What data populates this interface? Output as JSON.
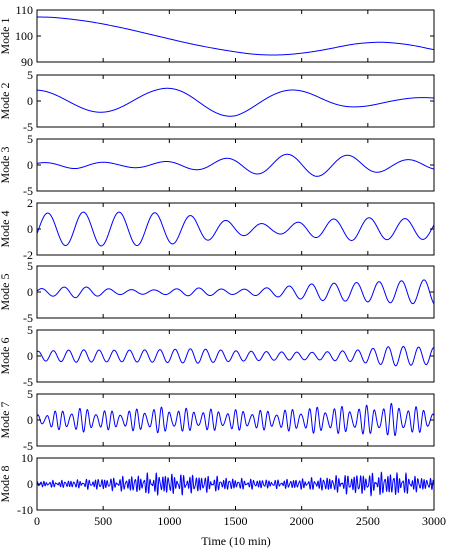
{
  "figure": {
    "xlabel": "Time (10 min)",
    "xticks": [
      0,
      500,
      1000,
      1500,
      2000,
      2500,
      3000
    ],
    "line_color": "#0000ff"
  },
  "chart_data": [
    {
      "type": "line",
      "ylabel": "Mode 1",
      "xlim": [
        0,
        3000
      ],
      "ylim": [
        90,
        110
      ],
      "yticks": [
        90,
        100,
        110
      ],
      "x": [
        0,
        100,
        200,
        300,
        400,
        500,
        600,
        700,
        800,
        900,
        1000,
        1100,
        1200,
        1300,
        1400,
        1500,
        1600,
        1700,
        1800,
        1900,
        2000,
        2100,
        2200,
        2300,
        2400,
        2500,
        2600,
        2700,
        2800,
        2900,
        3000
      ],
      "values": [
        107.3,
        107.2,
        106.8,
        106.2,
        105.5,
        104.6,
        103.6,
        102.5,
        101.3,
        100.1,
        98.9,
        97.7,
        96.6,
        95.6,
        94.7,
        93.9,
        93.2,
        92.8,
        92.7,
        92.9,
        93.4,
        94.1,
        95.0,
        96.0,
        96.9,
        97.4,
        97.6,
        97.3,
        96.7,
        95.8,
        94.8
      ]
    },
    {
      "type": "line",
      "ylabel": "Mode 2",
      "xlim": [
        0,
        3000
      ],
      "ylim": [
        -5,
        5
      ],
      "yticks": [
        -5,
        0,
        5
      ],
      "components": [
        {
          "amp": 2.1,
          "period": 980,
          "phase": 1.65
        }
      ],
      "envelope": [
        1.0,
        1.0,
        1.05,
        1.1,
        1.35,
        1.4,
        1.1,
        0.9,
        0.55,
        0.35,
        0.3
      ]
    },
    {
      "type": "line",
      "ylabel": "Mode 3",
      "xlim": [
        0,
        3000
      ],
      "ylim": [
        -5,
        5
      ],
      "yticks": [
        -5,
        0,
        5
      ],
      "components": [
        {
          "amp": 1.0,
          "period": 460,
          "phase": 0.9
        }
      ],
      "envelope": [
        0.4,
        0.7,
        0.45,
        0.6,
        0.9,
        1.4,
        2.0,
        2.2,
        1.8,
        1.1,
        0.9
      ]
    },
    {
      "type": "line",
      "ylabel": "Mode 4",
      "xlim": [
        0,
        3000
      ],
      "ylim": [
        -2,
        2
      ],
      "yticks": [
        -2,
        0,
        2
      ],
      "components": [
        {
          "amp": 1.0,
          "period": 270,
          "phase": -0.3
        }
      ],
      "envelope": [
        1.2,
        1.3,
        1.3,
        1.25,
        1.0,
        0.55,
        0.35,
        0.65,
        0.9,
        0.8,
        0.8
      ]
    },
    {
      "type": "line",
      "ylabel": "Mode 5",
      "xlim": [
        0,
        3000
      ],
      "ylim": [
        -5,
        5
      ],
      "yticks": [
        -5,
        0,
        5
      ],
      "components": [
        {
          "amp": 1.0,
          "period": 170,
          "phase": 0.3
        }
      ],
      "envelope": [
        0.6,
        1.1,
        0.5,
        0.4,
        0.8,
        0.45,
        0.9,
        1.6,
        1.8,
        2.1,
        2.4
      ]
    },
    {
      "type": "line",
      "ylabel": "Mode 6",
      "xlim": [
        0,
        3000
      ],
      "ylim": [
        -5,
        5
      ],
      "yticks": [
        -5,
        0,
        5
      ],
      "components": [
        {
          "amp": 1.0,
          "period": 115,
          "phase": 1.1
        }
      ],
      "envelope": [
        0.9,
        1.2,
        1.1,
        1.2,
        1.4,
        1.0,
        0.8,
        0.7,
        1.1,
        1.9,
        1.6
      ]
    },
    {
      "type": "line",
      "ylabel": "Mode 7",
      "xlim": [
        0,
        3000
      ],
      "ylim": [
        -5,
        5
      ],
      "yticks": [
        -5,
        0,
        5
      ],
      "components": [
        {
          "amp": 1.0,
          "period": 62,
          "phase": 0.4
        },
        {
          "amp": 0.35,
          "period": 47,
          "phase": 1.7
        }
      ],
      "envelope": [
        0.9,
        1.8,
        1.3,
        1.9,
        1.6,
        1.5,
        1.4,
        1.9,
        2.0,
        2.4,
        1.5
      ]
    },
    {
      "type": "line",
      "ylabel": "Mode 8",
      "xlim": [
        0,
        3000
      ],
      "ylim": [
        -10,
        10
      ],
      "yticks": [
        -10,
        0,
        10
      ],
      "components": [
        {
          "amp": 1.0,
          "period": 23,
          "phase": 0.2
        },
        {
          "amp": 0.6,
          "period": 17,
          "phase": 1.3
        },
        {
          "amp": 0.4,
          "period": 31,
          "phase": 2.1
        }
      ],
      "envelope": [
        0.6,
        0.9,
        1.4,
        2.4,
        2.0,
        1.2,
        0.9,
        1.3,
        2.2,
        2.6,
        1.1
      ]
    }
  ]
}
